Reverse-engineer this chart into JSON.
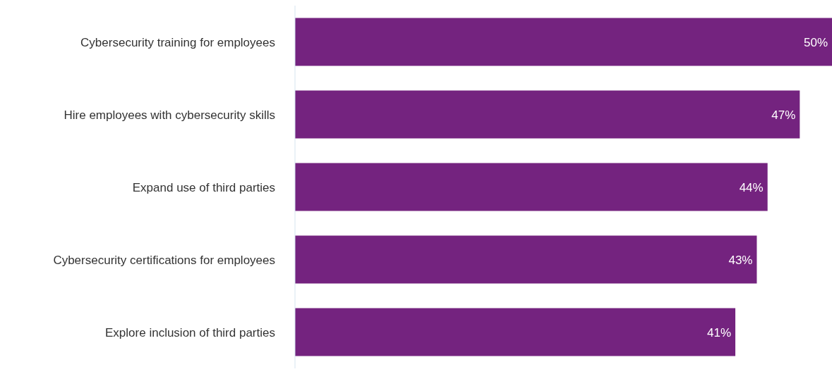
{
  "chart_data": {
    "type": "bar",
    "orientation": "horizontal",
    "categories": [
      "Cybersecurity training for employees",
      "Hire employees with cybersecurity skills",
      "Expand use of third parties",
      "Cybersecurity certifications for employees",
      "Explore inclusion of third parties"
    ],
    "values": [
      50,
      47,
      44,
      43,
      41
    ],
    "value_labels": [
      "50%",
      "47%",
      "44%",
      "43%",
      "41%"
    ],
    "color": "#74237f",
    "grid": false,
    "legend": false
  }
}
